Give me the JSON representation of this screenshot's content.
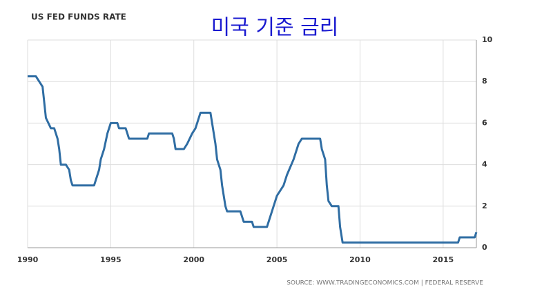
{
  "chart_data": {
    "type": "line",
    "title": "미국 기준 금리",
    "label": "US FED FUNDS RATE",
    "source": "SOURCE: WWW.TRADINGECONOMICS.COM | FEDERAL RESERVE",
    "x": [
      1990.0,
      1990.5,
      1990.7,
      1990.9,
      1991.0,
      1991.1,
      1991.4,
      1991.6,
      1991.8,
      1991.9,
      1992.0,
      1992.3,
      1992.5,
      1992.6,
      1992.7,
      1994.0,
      1994.1,
      1994.3,
      1994.4,
      1994.6,
      1994.8,
      1995.0,
      1995.4,
      1995.5,
      1995.9,
      1996.0,
      1996.1,
      1997.2,
      1997.3,
      1998.7,
      1998.8,
      1998.9,
      1999.4,
      1999.6,
      1999.9,
      2000.1,
      2000.4,
      2001.0,
      2001.1,
      2001.2,
      2001.3,
      2001.4,
      2001.6,
      2001.7,
      2001.8,
      2001.9,
      2002.0,
      2002.8,
      2003.0,
      2003.5,
      2003.6,
      2004.4,
      2004.5,
      2004.7,
      2005.0,
      2005.4,
      2005.6,
      2006.0,
      2006.3,
      2006.5,
      2007.6,
      2007.7,
      2007.9,
      2008.0,
      2008.1,
      2008.3,
      2008.7,
      2008.8,
      2008.95,
      2015.9,
      2016.0,
      2016.9,
      2017.0
    ],
    "series": [
      {
        "name": "US Fed Funds Rate",
        "color": "#2f6da3",
        "values": [
          8.25,
          8.25,
          8.0,
          7.75,
          7.0,
          6.25,
          5.75,
          5.75,
          5.25,
          4.75,
          4.0,
          4.0,
          3.75,
          3.25,
          3.0,
          3.0,
          3.25,
          3.75,
          4.25,
          4.75,
          5.5,
          6.0,
          6.0,
          5.75,
          5.75,
          5.5,
          5.25,
          5.25,
          5.5,
          5.5,
          5.25,
          4.75,
          4.75,
          5.0,
          5.5,
          5.75,
          6.5,
          6.5,
          6.0,
          5.5,
          5.0,
          4.25,
          3.75,
          3.0,
          2.5,
          2.0,
          1.75,
          1.75,
          1.25,
          1.25,
          1.0,
          1.0,
          1.25,
          1.75,
          2.5,
          3.0,
          3.5,
          4.25,
          5.0,
          5.25,
          5.25,
          4.75,
          4.25,
          3.0,
          2.25,
          2.0,
          2.0,
          1.0,
          0.25,
          0.25,
          0.5,
          0.5,
          0.75
        ]
      }
    ],
    "xlim": [
      1990,
      2017
    ],
    "xticks": [
      1990,
      1995,
      2000,
      2005,
      2010,
      2015
    ],
    "ylim": [
      0,
      10
    ],
    "yticks": [
      0,
      2,
      4,
      6,
      8,
      10
    ],
    "grid": true
  }
}
